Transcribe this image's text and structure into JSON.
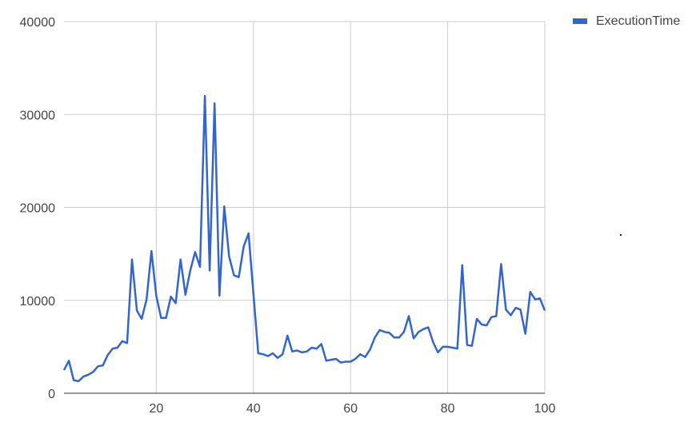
{
  "chart_data": {
    "type": "line",
    "title": "",
    "xlabel": "",
    "ylabel": "",
    "xlim": [
      1,
      100
    ],
    "ylim": [
      0,
      40000
    ],
    "x_ticks": [
      20,
      40,
      60,
      80,
      100
    ],
    "y_ticks": [
      0,
      10000,
      20000,
      30000,
      40000
    ],
    "x_tick_labels": [
      "20",
      "40",
      "60",
      "80",
      "100"
    ],
    "y_tick_labels": [
      "0",
      "10000",
      "20000",
      "30000",
      "40000"
    ],
    "grid": true,
    "legend_position": "top-right",
    "series": [
      {
        "name": "ExecutionTime",
        "color": "#3366cc",
        "x": [
          1,
          2,
          3,
          4,
          5,
          6,
          7,
          8,
          9,
          10,
          11,
          12,
          13,
          14,
          15,
          16,
          17,
          18,
          19,
          20,
          21,
          22,
          23,
          24,
          25,
          26,
          27,
          28,
          29,
          30,
          31,
          32,
          33,
          34,
          35,
          36,
          37,
          38,
          39,
          40,
          41,
          42,
          43,
          44,
          45,
          46,
          47,
          48,
          49,
          50,
          51,
          52,
          53,
          54,
          55,
          56,
          57,
          58,
          59,
          60,
          61,
          62,
          63,
          64,
          65,
          66,
          67,
          68,
          69,
          70,
          71,
          72,
          73,
          74,
          75,
          76,
          77,
          78,
          79,
          80,
          81,
          82,
          83,
          84,
          85,
          86,
          87,
          88,
          89,
          90,
          91,
          92,
          93,
          94,
          95,
          96,
          97,
          98,
          99,
          100
        ],
        "values": [
          2500,
          3500,
          1400,
          1300,
          1800,
          2000,
          2300,
          2900,
          3000,
          4100,
          4800,
          4900,
          5600,
          5400,
          14400,
          8900,
          8000,
          10100,
          15300,
          10500,
          8100,
          8100,
          10400,
          9700,
          14400,
          10600,
          13200,
          15200,
          13600,
          32000,
          13200,
          31200,
          10500,
          20100,
          14700,
          12700,
          12500,
          15800,
          17200,
          10700,
          4300,
          4200,
          4000,
          4300,
          3800,
          4200,
          6200,
          4500,
          4600,
          4400,
          4500,
          4900,
          4800,
          5300,
          3500,
          3600,
          3700,
          3300,
          3400,
          3400,
          3700,
          4200,
          3900,
          4700,
          6000,
          6800,
          6600,
          6500,
          6000,
          6000,
          6600,
          8300,
          5900,
          6600,
          6900,
          7100,
          5500,
          4400,
          5000,
          5000,
          4900,
          4800,
          13800,
          5200,
          5100,
          8000,
          7400,
          7300,
          8200,
          8300,
          13900,
          9000,
          8400,
          9200,
          9000,
          6400,
          10900,
          10100,
          10200,
          8900
        ]
      }
    ]
  }
}
